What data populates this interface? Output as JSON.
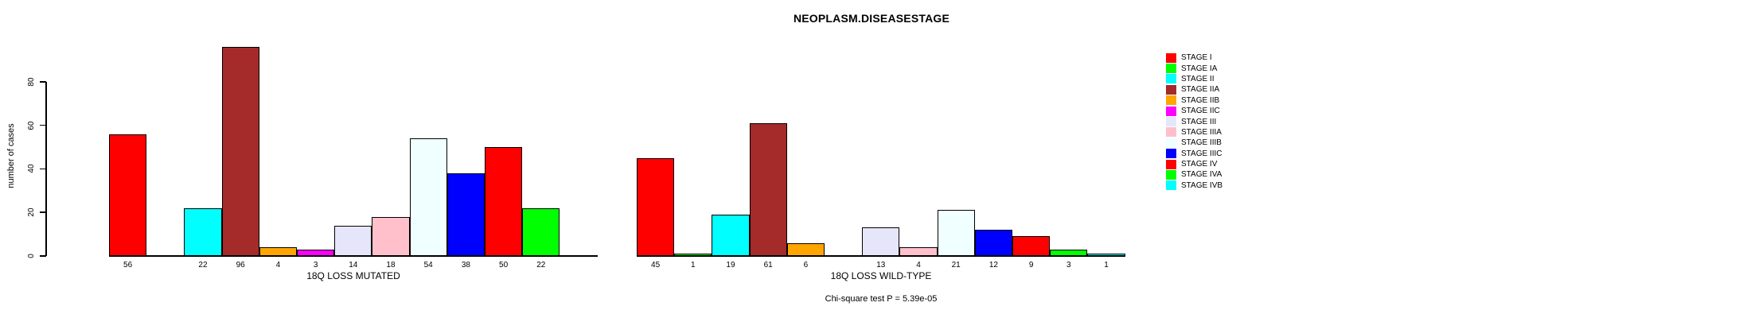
{
  "chart_data": {
    "type": "bar",
    "title": "NEOPLASM.DISEASESTAGE",
    "ylabel": "number of cases",
    "xlabel": "",
    "yticks": [
      0,
      20,
      40,
      60,
      80
    ],
    "ylim": [
      0,
      96
    ],
    "grid": false,
    "legend_position": "right",
    "categories": [
      "STAGE I",
      "STAGE IA",
      "STAGE II",
      "STAGE IIA",
      "STAGE IIB",
      "STAGE IIC",
      "STAGE III",
      "STAGE IIIA",
      "STAGE IIIB",
      "STAGE IIIC",
      "STAGE IV",
      "STAGE IVA",
      "STAGE IVB"
    ],
    "palette": [
      "#FF0000",
      "#00FF00",
      "#00FFFF",
      "#A52A2A",
      "#FFA500",
      "#FF00FF",
      "#E6E6FA",
      "#FFC0CB",
      "#F0FFFF",
      "#0000FF",
      "#FF0000",
      "#00FF00",
      "#00FFFF"
    ],
    "groups": [
      {
        "label": "18Q LOSS MUTATED",
        "values": [
          56,
          0,
          22,
          96,
          4,
          3,
          14,
          18,
          54,
          38,
          50,
          22,
          0
        ]
      },
      {
        "label": "18Q LOSS WILD-TYPE",
        "values": [
          45,
          1,
          19,
          61,
          6,
          0,
          13,
          4,
          21,
          12,
          9,
          3,
          1
        ]
      }
    ],
    "bar_border_color": "#000000",
    "footnote": "Chi-square test P = 5.39e-05"
  }
}
